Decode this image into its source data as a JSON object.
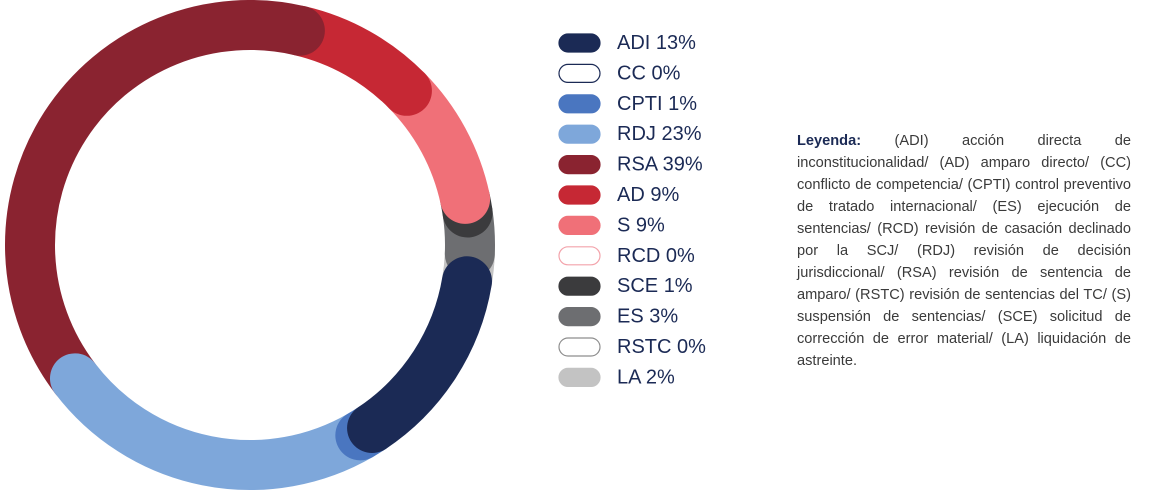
{
  "chart_data": {
    "type": "donut",
    "categories": [
      "ADI",
      "CC",
      "CPTI",
      "RDJ",
      "RSA",
      "AD",
      "S",
      "RCD",
      "SCE",
      "ES",
      "RSTC",
      "LA"
    ],
    "values": [
      13,
      0,
      1,
      23,
      39,
      9,
      9,
      0,
      1,
      3,
      0,
      2
    ],
    "value_labels": [
      "13%",
      "0%",
      "1%",
      "23%",
      "39%",
      "9%",
      "9%",
      "0%",
      "1%",
      "3%",
      "0%",
      "2%"
    ],
    "colors": [
      "#1b2a55",
      "#1b2a55",
      "#4a76c0",
      "#7ea7da",
      "#8a2330",
      "#c62834",
      "#f07078",
      "#f3a3ab",
      "#3b3b3d",
      "#6d6e71",
      "#8e8e8e",
      "#c3c3c3"
    ],
    "note": {
      "title": "Leyenda:",
      "text": "(ADI) acción directa de inconstitucionalidad/ (AD) amparo directo/ (CC) conflicto de competencia/ (CPTI) control preventivo de tratado internacional/ (ES) ejecución de sentencias/ (RCD) revisión de casación declinado por la SCJ/ (RDJ) revisión de decisión jurisdiccional/ (RSA) revisión de sentencia de amparo/ (RSTC) revisión de sentencias del TC/ (S) suspensión de sentencias/ (SCE) solicitud de corrección de error material/ (LA) liquidación de astreinte."
    }
  }
}
